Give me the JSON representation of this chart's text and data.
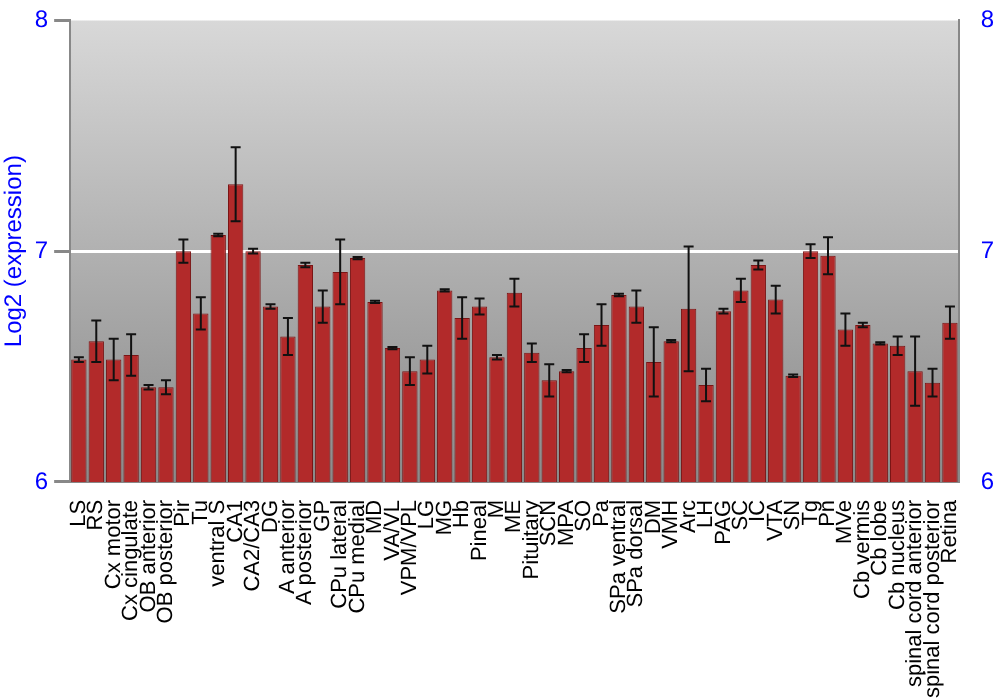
{
  "chart_data": {
    "type": "bar",
    "ylabel": "Log2 (expression)",
    "categories": [
      "LS",
      "RS",
      "Cx motor",
      "Cx cingulate",
      "OB anterior",
      "OB posterior",
      "Pir",
      "Tu",
      "ventral S",
      "CA1",
      "CA2/CA3",
      "DG",
      "A anterior",
      "A posterior",
      "GP",
      "CPu lateral",
      "CPu medial",
      "MD",
      "VA/VL",
      "VPM/VPL",
      "LG",
      "MG",
      "Hb",
      "Pineal",
      "M",
      "ME",
      "Pituitary",
      "SCN",
      "MPA",
      "SO",
      "Pa",
      "SPa ventral",
      "SPa dorsal",
      "DM",
      "VMH",
      "Arc",
      "LH",
      "PAG",
      "SC",
      "IC",
      "VTA",
      "SN",
      "Tg",
      "Pn",
      "MVe",
      "Cb vermis",
      "Cb lobe",
      "Cb nucleus",
      "spinal cord anterior",
      "spinal cord posterior",
      "Retina"
    ],
    "values": [
      6.53,
      6.61,
      6.53,
      6.55,
      6.41,
      6.41,
      7.0,
      6.73,
      7.07,
      7.29,
      7.0,
      6.76,
      6.63,
      6.94,
      6.76,
      6.91,
      6.97,
      6.78,
      6.58,
      6.48,
      6.53,
      6.83,
      6.71,
      6.76,
      6.54,
      6.82,
      6.56,
      6.44,
      6.48,
      6.58,
      6.68,
      6.81,
      6.76,
      6.52,
      6.61,
      6.75,
      6.42,
      6.74,
      6.83,
      6.94,
      6.79,
      6.46,
      7.0,
      6.98,
      6.66,
      6.68,
      6.6,
      6.59,
      6.48,
      6.43,
      6.69
    ],
    "errors": [
      0.01,
      0.09,
      0.09,
      0.09,
      0.01,
      0.03,
      0.05,
      0.07,
      0.005,
      0.16,
      0.01,
      0.01,
      0.08,
      0.01,
      0.07,
      0.14,
      0.005,
      0.005,
      0.005,
      0.06,
      0.06,
      0.005,
      0.09,
      0.035,
      0.01,
      0.06,
      0.04,
      0.07,
      0.005,
      0.06,
      0.09,
      0.005,
      0.07,
      0.15,
      0.005,
      0.27,
      0.07,
      0.01,
      0.05,
      0.02,
      0.06,
      0.005,
      0.03,
      0.08,
      0.07,
      0.01,
      0.005,
      0.04,
      0.15,
      0.06,
      0.07
    ],
    "color": "#b22a2a",
    "ylim": [
      6,
      8
    ],
    "yticks": [
      6,
      7,
      8
    ],
    "y2lim": [
      6,
      8
    ],
    "y2ticks": [
      6,
      7,
      8
    ],
    "grid": "y"
  }
}
